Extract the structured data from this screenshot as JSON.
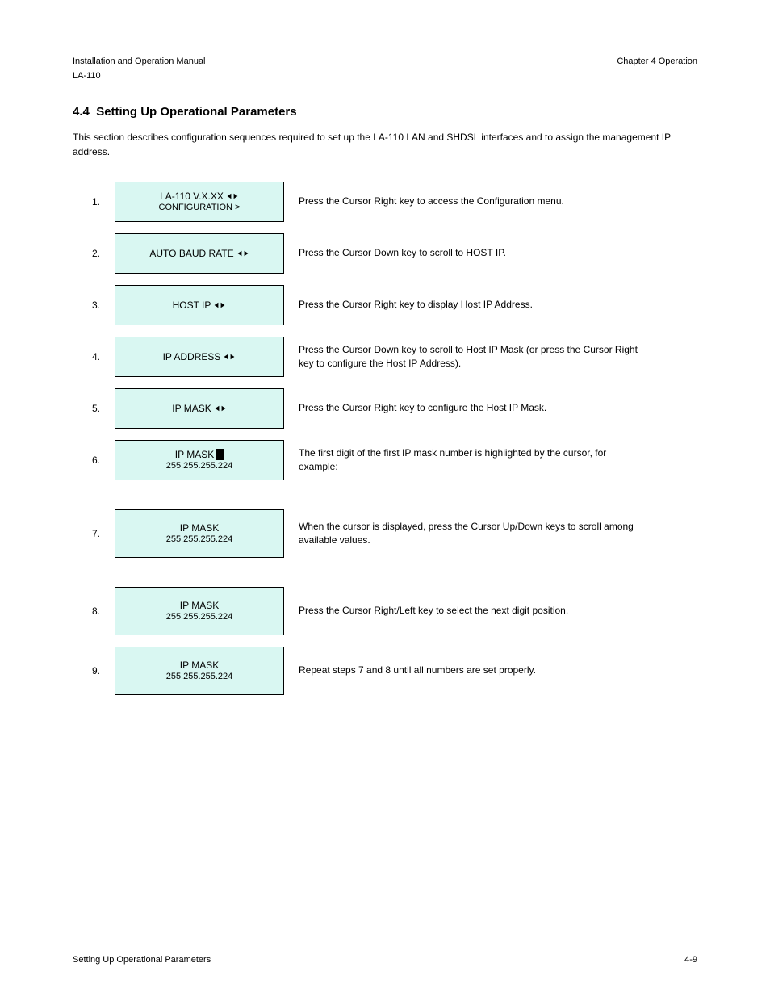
{
  "header": {
    "manual_title": "Installation and Operation Manual",
    "chapter": "Chapter 4 Operation",
    "model": "LA-110"
  },
  "section": {
    "number": "4.4",
    "title": "Setting Up Operational Parameters",
    "intro": "This section describes configuration sequences required to set up the LA-110 LAN and SHDSL interfaces and to assign the management IP address."
  },
  "items": [
    {
      "idx": "1.",
      "lcd_top": "LA-110   V.X.XX",
      "arrows": true,
      "lcd_bottom": "CONFIGURATION >",
      "height": "small",
      "desc_lines": [
        "Press the Cursor Right key to access the Configuration menu."
      ]
    },
    {
      "idx": "2.",
      "lcd_top": "AUTO BAUD RATE",
      "arrows": true,
      "lcd_bottom": "",
      "height": "small",
      "desc_lines": [
        "Press the Cursor Down key to scroll to HOST IP."
      ]
    },
    {
      "idx": "3.",
      "lcd_top": "HOST IP",
      "arrows": true,
      "lcd_bottom": "",
      "height": "small",
      "desc_lines": [
        "Press the Cursor Right key to display Host IP Address."
      ]
    },
    {
      "idx": "4.",
      "lcd_top": "IP ADDRESS",
      "arrows": true,
      "lcd_bottom": "",
      "height": "small",
      "desc_lines": [
        "Press the Cursor Down key to scroll to Host IP Mask (or press the Cursor Right key to configure the Host IP Address)."
      ]
    },
    {
      "idx": "5.",
      "lcd_top": "IP MASK",
      "arrows": true,
      "lcd_bottom": "",
      "height": "small",
      "desc_lines": [
        "Press the Cursor Right key to configure the Host IP Mask."
      ]
    },
    {
      "idx": "6.",
      "lcd_top_prefix": "IP MASK",
      "cursor": true,
      "lcd_bottom": "255.255.255.224",
      "height": "small",
      "desc_lines": [
        "The first digit of the first IP mask number is highlighted by the cursor, for example:"
      ]
    },
    {
      "idx": "7.",
      "lcd_top": "IP MASK",
      "lcd_bottom": "255.255.255.224",
      "height": "tall",
      "spaced": true,
      "desc_lines": [
        "When the cursor is displayed, press the Cursor Up/Down keys to scroll among available values."
      ]
    },
    {
      "idx": "8.",
      "lcd_top": "IP MASK",
      "lcd_bottom": "255.255.255.224",
      "height": "tall",
      "spaced": true,
      "desc_lines": [
        "Press the Cursor Right/Left key to select the next digit position."
      ]
    },
    {
      "idx": "9.",
      "lcd_top": "IP MASK",
      "lcd_bottom": "255.255.255.224",
      "height": "tall",
      "desc_lines": [
        "Repeat steps 7 and 8 until all numbers are set properly."
      ]
    }
  ],
  "footer": {
    "left": "Setting Up Operational Parameters",
    "right": "4-9"
  },
  "colors": {
    "lcd_bg": "#d9f7f2",
    "page_bg": "#ffffff"
  }
}
